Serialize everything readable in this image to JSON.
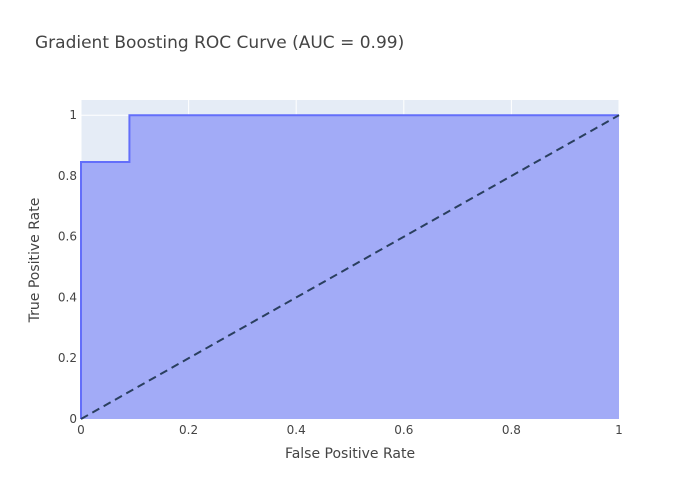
{
  "chart_data": {
    "type": "area",
    "title": "Gradient Boosting ROC Curve (AUC = 0.99)",
    "xlabel": "False Positive Rate",
    "ylabel": "True Positive Rate",
    "xlim": [
      0,
      1
    ],
    "ylim": [
      0,
      1.0
    ],
    "x_ticks": [
      0,
      0.2,
      0.4,
      0.6,
      0.8,
      1
    ],
    "x_tick_labels": [
      "0",
      "0.2",
      "0.4",
      "0.6",
      "0.8",
      "1"
    ],
    "y_ticks": [
      0,
      0.2,
      0.4,
      0.6,
      0.8,
      1
    ],
    "y_tick_labels": [
      "0",
      "0.2",
      "0.4",
      "0.6",
      "0.8",
      "1"
    ],
    "grid": true,
    "series": [
      {
        "x": [
          0,
          0,
          0.09,
          0.09,
          1
        ],
        "y": [
          0,
          0.846,
          0.846,
          1,
          1
        ],
        "fill": "tozeroy",
        "line_color": "#636efa",
        "fill_color": "#a2abf7"
      },
      {
        "x": [
          0,
          1
        ],
        "y": [
          0,
          1
        ],
        "dash": true,
        "line_color": "#2a3f5f"
      }
    ]
  },
  "colors": {
    "plot_background": "#e5ecf6",
    "grid": "#ffffff"
  }
}
